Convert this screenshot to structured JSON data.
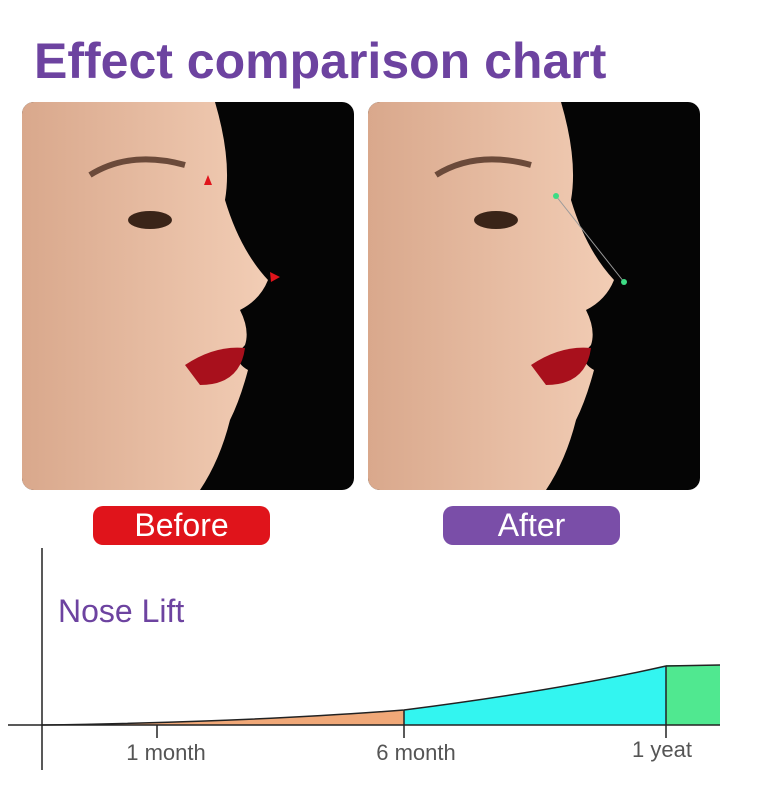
{
  "header": {
    "title": "Effect comparison chart"
  },
  "photos": {
    "before_label": "Before",
    "after_label": "After"
  },
  "timeline": {
    "label": "Nose Lift",
    "ticks": [
      "1 month",
      "6 month",
      "1 yeat"
    ]
  }
}
